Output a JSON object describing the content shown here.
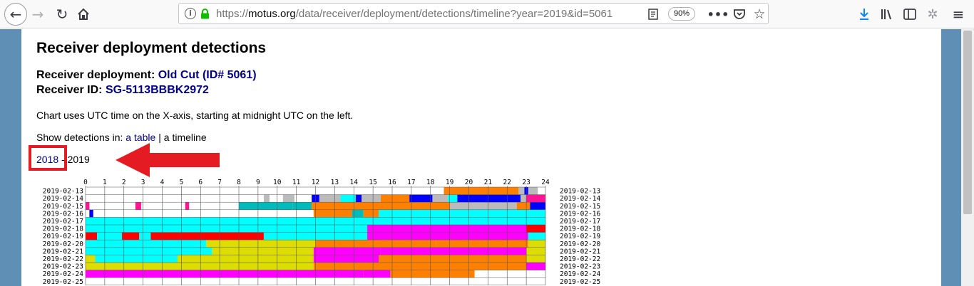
{
  "browser": {
    "url_prefix": "https://",
    "url_host": "motus.org",
    "url_path": "/data/receiver/deployment/detections/timeline?year=2019&id=5061",
    "zoom": "90%",
    "nav_icons": [
      "back-arrow-icon",
      "forward-arrow-icon",
      "reload-icon",
      "home-icon"
    ],
    "right_icons": [
      "download-icon",
      "library-icon",
      "sidebar-icon",
      "extension-icon",
      "menu-icon"
    ]
  },
  "page": {
    "title": "Receiver deployment detections",
    "deployment_label": "Receiver deployment:",
    "deployment_link": "Old Cut (ID# 5061)",
    "receiver_label": "Receiver ID:",
    "receiver_link": "SG-5113BBBK2972",
    "utc_note": "Chart uses UTC time on the X-axis, starting at midnight UTC on the left.",
    "show_prefix": "Show detections in:",
    "table_link": "a table",
    "separator": "|",
    "timeline_text": "a timeline",
    "prev_year": "2018",
    "year_dash": "-",
    "current_year": "2019"
  },
  "annotation": {
    "box_color": "#e41b23",
    "arrow_color": "#e41b23"
  },
  "chart_data": {
    "type": "heatmap",
    "x_ticks": [
      "0",
      "1",
      "2",
      "3",
      "4",
      "5",
      "6",
      "7",
      "8",
      "9",
      "10",
      "11",
      "12",
      "13",
      "14",
      "15",
      "16",
      "17",
      "18",
      "19",
      "20",
      "21",
      "22",
      "23",
      "24"
    ],
    "xlim": [
      0,
      24
    ],
    "grid": true,
    "palette": {
      "orange": "#ff8000",
      "blue": "#0000ff",
      "gray": "#bbbbbb",
      "magenta": "#ff00ff",
      "cyan": "#00ffff",
      "teal": "#00bbbb",
      "red": "#ff0000",
      "yellow": "#dddd00",
      "pink": "#ff1493",
      "green": "#33cc33"
    },
    "rows": [
      {
        "date": "2019-02-13",
        "segments": [
          [
            18.7,
            22.6,
            "orange"
          ],
          [
            22.6,
            22.9,
            "gray"
          ],
          [
            22.9,
            23.1,
            "blue"
          ],
          [
            23.1,
            23.6,
            "gray"
          ]
        ]
      },
      {
        "date": "2019-02-14",
        "segments": [
          [
            9.3,
            9.6,
            "gray"
          ],
          [
            10.3,
            10.9,
            "gray"
          ],
          [
            11.8,
            12.2,
            "blue"
          ],
          [
            12.2,
            13.3,
            "gray"
          ],
          [
            13.3,
            14.1,
            "cyan"
          ],
          [
            14.1,
            14.4,
            "blue"
          ],
          [
            14.4,
            15.4,
            "gray"
          ],
          [
            15.4,
            16.9,
            "orange"
          ],
          [
            16.9,
            18.1,
            "blue"
          ],
          [
            18.1,
            18.9,
            "gray"
          ],
          [
            18.9,
            19.4,
            "cyan"
          ],
          [
            19.4,
            22.7,
            "blue"
          ],
          [
            22.7,
            23.0,
            "gray"
          ],
          [
            23.0,
            24.0,
            "pink"
          ]
        ]
      },
      {
        "date": "2019-02-15",
        "segments": [
          [
            0.0,
            0.2,
            "pink"
          ],
          [
            2.6,
            2.9,
            "pink"
          ],
          [
            5.2,
            5.4,
            "pink"
          ],
          [
            8.0,
            10.8,
            "teal"
          ],
          [
            10.8,
            11.8,
            "teal"
          ],
          [
            11.8,
            19.0,
            "orange"
          ],
          [
            19.0,
            20.3,
            "gray"
          ],
          [
            20.3,
            22.5,
            "gray"
          ],
          [
            22.5,
            23.2,
            "orange"
          ],
          [
            23.2,
            24.0,
            "blue"
          ]
        ]
      },
      {
        "date": "2019-02-16",
        "segments": [
          [
            0.2,
            0.4,
            "blue"
          ],
          [
            11.9,
            13.9,
            "orange"
          ],
          [
            13.9,
            14.5,
            "teal"
          ],
          [
            14.5,
            15.3,
            "orange"
          ],
          [
            15.3,
            24.0,
            "cyan"
          ]
        ]
      },
      {
        "date": "2019-02-17",
        "segments": [
          [
            0.0,
            24.0,
            "cyan"
          ]
        ]
      },
      {
        "date": "2019-02-18",
        "segments": [
          [
            0.0,
            14.7,
            "cyan"
          ],
          [
            14.7,
            23.0,
            "magenta"
          ],
          [
            23.0,
            24.0,
            "red"
          ]
        ]
      },
      {
        "date": "2019-02-19",
        "segments": [
          [
            0.0,
            0.6,
            "red"
          ],
          [
            0.6,
            1.9,
            "cyan"
          ],
          [
            1.9,
            2.8,
            "red"
          ],
          [
            2.8,
            3.4,
            "cyan"
          ],
          [
            3.4,
            9.3,
            "red"
          ],
          [
            9.3,
            11.7,
            "cyan"
          ],
          [
            11.7,
            14.7,
            "cyan"
          ],
          [
            14.7,
            23.1,
            "magenta"
          ],
          [
            23.1,
            24.0,
            "cyan"
          ]
        ]
      },
      {
        "date": "2019-02-20",
        "segments": [
          [
            0.0,
            6.3,
            "cyan"
          ],
          [
            6.3,
            12.0,
            "yellow"
          ],
          [
            12.0,
            18.3,
            "orange"
          ],
          [
            18.3,
            23.1,
            "orange"
          ],
          [
            23.1,
            24.0,
            "yellow"
          ]
        ]
      },
      {
        "date": "2019-02-21",
        "segments": [
          [
            0.0,
            6.6,
            "cyan"
          ],
          [
            6.6,
            11.9,
            "yellow"
          ],
          [
            11.9,
            15.4,
            "magenta"
          ],
          [
            15.4,
            23.0,
            "magenta"
          ],
          [
            23.0,
            24.0,
            "yellow"
          ]
        ]
      },
      {
        "date": "2019-02-22",
        "segments": [
          [
            0.0,
            0.5,
            "yellow"
          ],
          [
            0.5,
            4.8,
            "cyan"
          ],
          [
            4.8,
            11.9,
            "yellow"
          ],
          [
            11.9,
            15.3,
            "magenta"
          ],
          [
            15.3,
            23.0,
            "orange"
          ],
          [
            23.0,
            24.0,
            "yellow"
          ]
        ]
      },
      {
        "date": "2019-02-23",
        "segments": [
          [
            0.0,
            11.9,
            "yellow"
          ],
          [
            11.9,
            23.0,
            "orange"
          ],
          [
            23.0,
            24.0,
            "magenta"
          ]
        ]
      },
      {
        "date": "2019-02-24",
        "segments": [
          [
            0.0,
            14.5,
            "magenta"
          ],
          [
            14.5,
            15.9,
            "magenta"
          ],
          [
            15.9,
            20.3,
            "orange"
          ]
        ]
      },
      {
        "date": "2019-02-25",
        "segments": []
      }
    ]
  }
}
